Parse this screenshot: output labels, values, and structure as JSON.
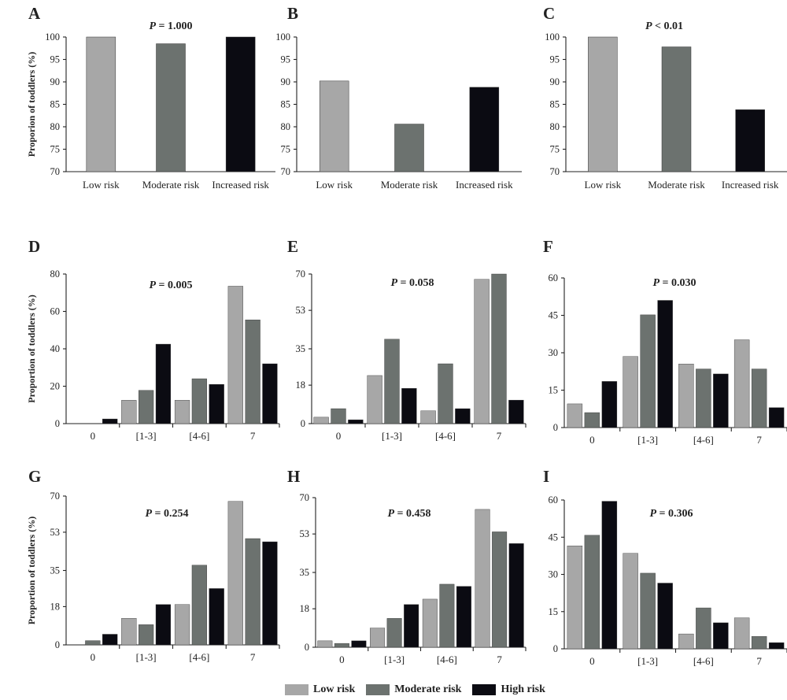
{
  "legend": [
    {
      "name": "Low risk",
      "color": "#a7a7a7"
    },
    {
      "name": "Moderate risk",
      "color": "#6c726f"
    },
    {
      "name": "High risk",
      "color": "#0b0b12"
    }
  ],
  "colors": {
    "low": "#a7a7a7",
    "moderate": "#6c726f",
    "high": "#0b0b12"
  },
  "chart_data": [
    {
      "panel": "A",
      "type": "bar",
      "title": "",
      "p_prefix": "P",
      "p_value": " = 1.000",
      "ylabel": "Proporion of toddlers (%)",
      "ylim": [
        70,
        100
      ],
      "yticks": [
        70,
        75,
        80,
        85,
        90,
        95,
        100
      ],
      "categories": [
        "Low risk",
        "Moderate risk",
        "Increased risk"
      ],
      "values": [
        100,
        98.5,
        100
      ],
      "bar_colors": [
        "low",
        "moderate",
        "high"
      ]
    },
    {
      "panel": "B",
      "type": "bar",
      "title": "",
      "p_prefix": "",
      "p_value": "",
      "ylabel": "",
      "ylim": [
        70,
        100
      ],
      "yticks": [
        70,
        75,
        80,
        85,
        90,
        95,
        100
      ],
      "categories": [
        "Low risk",
        "Moderate risk",
        "Increased risk"
      ],
      "values": [
        90.2,
        80.6,
        88.8
      ],
      "bar_colors": [
        "low",
        "moderate",
        "high"
      ]
    },
    {
      "panel": "C",
      "type": "bar",
      "title": "",
      "p_prefix": "P",
      "p_value": " < 0.01",
      "ylabel": "",
      "ylim": [
        70,
        100
      ],
      "yticks": [
        70,
        75,
        80,
        85,
        90,
        95,
        100
      ],
      "categories": [
        "Low risk",
        "Moderate risk",
        "Increased risk"
      ],
      "values": [
        100,
        97.8,
        83.8
      ],
      "bar_colors": [
        "low",
        "moderate",
        "high"
      ]
    },
    {
      "panel": "D",
      "type": "bar",
      "p_prefix": "P",
      "p_value": " = 0.005",
      "ylabel": "Proportion of toddlers (%)",
      "ylim": [
        0,
        80
      ],
      "yticks": [
        0,
        20,
        40,
        60,
        80
      ],
      "categories": [
        "0",
        "[1-3]",
        "[4-6]",
        "7"
      ],
      "series": [
        {
          "name": "Low risk",
          "values": [
            0,
            12.5,
            12.5,
            73.5
          ]
        },
        {
          "name": "Moderate risk",
          "values": [
            0,
            17.8,
            24,
            55.5
          ]
        },
        {
          "name": "High risk",
          "values": [
            2.5,
            42.5,
            21,
            32
          ]
        }
      ]
    },
    {
      "panel": "E",
      "type": "bar",
      "p_prefix": "P",
      "p_value": " = 0.058",
      "ylabel": "",
      "ylim": [
        0,
        70
      ],
      "yticks": [
        0,
        18,
        35,
        53,
        70
      ],
      "categories": [
        "0",
        "[1-3]",
        "[4-6]",
        "7"
      ],
      "series": [
        {
          "name": "Low risk",
          "values": [
            3,
            22.5,
            6,
            67.5
          ]
        },
        {
          "name": "Moderate risk",
          "values": [
            7,
            39.5,
            28,
            70
          ]
        },
        {
          "name": "High risk",
          "values": [
            1.8,
            16.5,
            7,
            11
          ]
        }
      ]
    },
    {
      "panel": "F",
      "type": "bar",
      "p_prefix": "P",
      "p_value": " = 0.030",
      "ylabel": "",
      "ylim": [
        0,
        60
      ],
      "yticks": [
        0,
        15,
        30,
        45,
        60
      ],
      "categories": [
        "0",
        "[1-3]",
        "[4-6]",
        "7"
      ],
      "series": [
        {
          "name": "Low risk",
          "values": [
            9.5,
            28.5,
            25.5,
            35.2
          ]
        },
        {
          "name": "Moderate risk",
          "values": [
            6,
            45.2,
            23.5,
            23.5
          ]
        },
        {
          "name": "High risk",
          "values": [
            18.5,
            51,
            21.5,
            8
          ]
        }
      ]
    },
    {
      "panel": "G",
      "type": "bar",
      "p_prefix": "P",
      "p_value": " = 0.254",
      "ylabel": "Proportion of toddlers (%)",
      "ylim": [
        0,
        70
      ],
      "yticks": [
        0,
        18,
        35,
        53,
        70
      ],
      "categories": [
        "0",
        "[1-3]",
        "[4-6]",
        "7"
      ],
      "series": [
        {
          "name": "Low risk",
          "values": [
            0,
            12.5,
            19,
            67.5
          ]
        },
        {
          "name": "Moderate risk",
          "values": [
            2,
            9.5,
            37.5,
            50
          ]
        },
        {
          "name": "High risk",
          "values": [
            5,
            19,
            26.5,
            48.5
          ]
        }
      ]
    },
    {
      "panel": "H",
      "type": "bar",
      "p_prefix": "P",
      "p_value": " = 0.458",
      "ylabel": "",
      "ylim": [
        0,
        70
      ],
      "yticks": [
        0,
        18,
        35,
        53,
        70
      ],
      "categories": [
        "0",
        "[1-3]",
        "[4-6]",
        "7"
      ],
      "series": [
        {
          "name": "Low risk",
          "values": [
            3,
            9,
            22.5,
            64.5
          ]
        },
        {
          "name": "Moderate risk",
          "values": [
            1.8,
            13.5,
            29.5,
            54
          ]
        },
        {
          "name": "High risk",
          "values": [
            3,
            20,
            28.5,
            48.5
          ]
        }
      ]
    },
    {
      "panel": "I",
      "type": "bar",
      "p_prefix": "P",
      "p_value": " = 0.306",
      "ylabel": "",
      "ylim": [
        0,
        60
      ],
      "yticks": [
        0,
        15,
        30,
        45,
        60
      ],
      "categories": [
        "0",
        "[1-3]",
        "[4-6]",
        "7"
      ],
      "series": [
        {
          "name": "Low risk",
          "values": [
            41.5,
            38.5,
            6,
            12.5
          ]
        },
        {
          "name": "Moderate risk",
          "values": [
            45.8,
            30.5,
            16.5,
            5
          ]
        },
        {
          "name": "High risk",
          "values": [
            59.5,
            26.5,
            10.5,
            2.5
          ]
        }
      ]
    }
  ]
}
